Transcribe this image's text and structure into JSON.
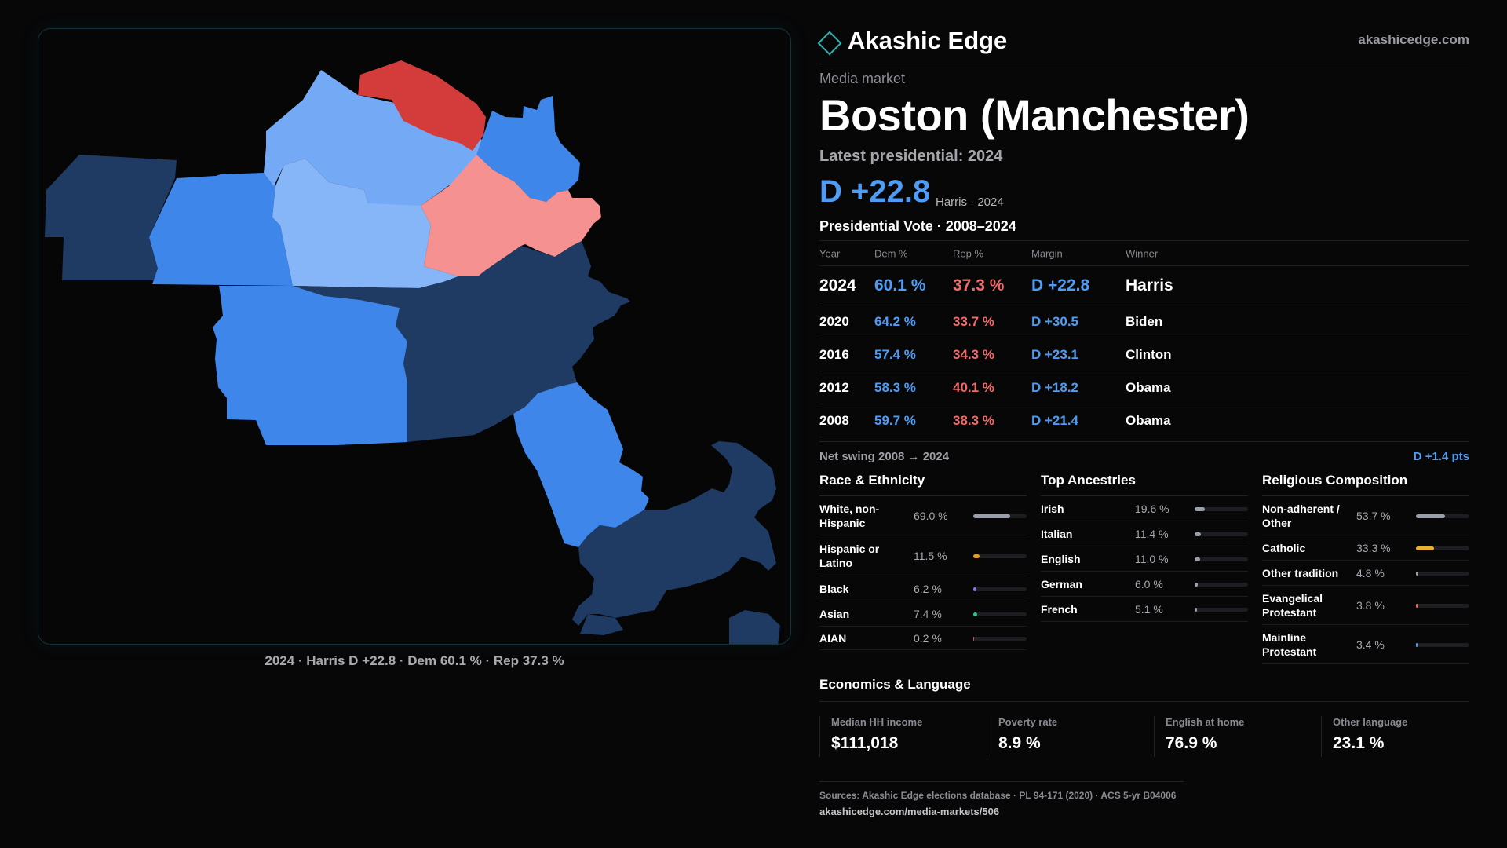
{
  "colors": {
    "accent": "#2bb3b3",
    "dem_text": "#4f9cf5",
    "rep_text": "#f06a6a",
    "dem_dark": "#1f3a63",
    "dem_mid": "#3f86ea",
    "dem_light": "#74a9f5",
    "dem_lighter": "#86b6f7",
    "rep_strong": "#d43c3c",
    "rep_light": "#f59191"
  },
  "header": {
    "brand": "Akashic Edge",
    "url": "akashicedge.com",
    "logo_icon": "diamond-icon"
  },
  "market": {
    "kicker": "Media market",
    "title": "Boston (Manchester)",
    "subtitle": "Latest presidential: 2024",
    "margin": "D +22.8",
    "margin_meta": "Harris · 2024"
  },
  "vote": {
    "title": "Presidential Vote · 2008–2024",
    "headers": [
      "Year",
      "Dem %",
      "Rep %",
      "Margin",
      "Winner"
    ],
    "rows": [
      {
        "year": "2024",
        "dem": "60.1 %",
        "rep": "37.3 %",
        "margin": "D +22.8",
        "winner": "Harris"
      },
      {
        "year": "2020",
        "dem": "64.2 %",
        "rep": "33.7 %",
        "margin": "D +30.5",
        "winner": "Biden"
      },
      {
        "year": "2016",
        "dem": "57.4 %",
        "rep": "34.3 %",
        "margin": "D +23.1",
        "winner": "Clinton"
      },
      {
        "year": "2012",
        "dem": "58.3 %",
        "rep": "40.1 %",
        "margin": "D +18.2",
        "winner": "Obama"
      },
      {
        "year": "2008",
        "dem": "59.7 %",
        "rep": "38.3 %",
        "margin": "D +21.4",
        "winner": "Obama"
      }
    ],
    "swing_label": "Net swing 2008 → 2024",
    "swing_value": "D +1.4 pts"
  },
  "race": {
    "title": "Race & Ethnicity",
    "items": [
      {
        "label": "White, non-Hispanic",
        "value": "69.0 %",
        "share": 0.69,
        "color": "#9aa0ab"
      },
      {
        "label": "Hispanic or Latino",
        "value": "11.5 %",
        "share": 0.115,
        "color": "#e59a2c"
      },
      {
        "label": "Black",
        "value": "6.2 %",
        "share": 0.062,
        "color": "#8b6fe0"
      },
      {
        "label": "Asian",
        "value": "7.4 %",
        "share": 0.074,
        "color": "#34c48a"
      },
      {
        "label": "AIAN",
        "value": "0.2 %",
        "share": 0.002,
        "color": "#c06060"
      }
    ]
  },
  "ancestry": {
    "title": "Top Ancestries",
    "items": [
      {
        "label": "Irish",
        "value": "19.6 %",
        "share": 0.196,
        "color": "#9aa0ab"
      },
      {
        "label": "Italian",
        "value": "11.4 %",
        "share": 0.114,
        "color": "#9aa0ab"
      },
      {
        "label": "English",
        "value": "11.0 %",
        "share": 0.11,
        "color": "#9aa0ab"
      },
      {
        "label": "German",
        "value": "6.0 %",
        "share": 0.06,
        "color": "#9aa0ab"
      },
      {
        "label": "French",
        "value": "5.1 %",
        "share": 0.051,
        "color": "#9aa0ab"
      }
    ]
  },
  "religion": {
    "title": "Religious Composition",
    "items": [
      {
        "label": "Non-adherent / Other",
        "value": "53.7 %",
        "share": 0.537,
        "color": "#9aa0ab"
      },
      {
        "label": "Catholic",
        "value": "33.3 %",
        "share": 0.333,
        "color": "#e8b030"
      },
      {
        "label": "Other tradition",
        "value": "4.8 %",
        "share": 0.048,
        "color": "#9aa0ab"
      },
      {
        "label": "Evangelical Protestant",
        "value": "3.8 %",
        "share": 0.038,
        "color": "#e0705a"
      },
      {
        "label": "Mainline Protestant",
        "value": "3.4 %",
        "share": 0.034,
        "color": "#4f9cf5"
      }
    ]
  },
  "economics": {
    "title": "Economics & Language",
    "cells": [
      {
        "label": "Median HH income",
        "value": "$111,018"
      },
      {
        "label": "Poverty rate",
        "value": "8.9 %"
      },
      {
        "label": "English at home",
        "value": "76.9 %"
      },
      {
        "label": "Other language",
        "value": "23.1 %"
      }
    ]
  },
  "map": {
    "caption": "2024 · Harris D +22.8 · Dem 60.1 % · Rep 37.3 %"
  },
  "footer": {
    "sources": "Sources: Akashic Edge elections database · PL 94-171 (2020) · ACS 5-yr B04006",
    "url": "akashicedge.com/media-markets/506"
  }
}
